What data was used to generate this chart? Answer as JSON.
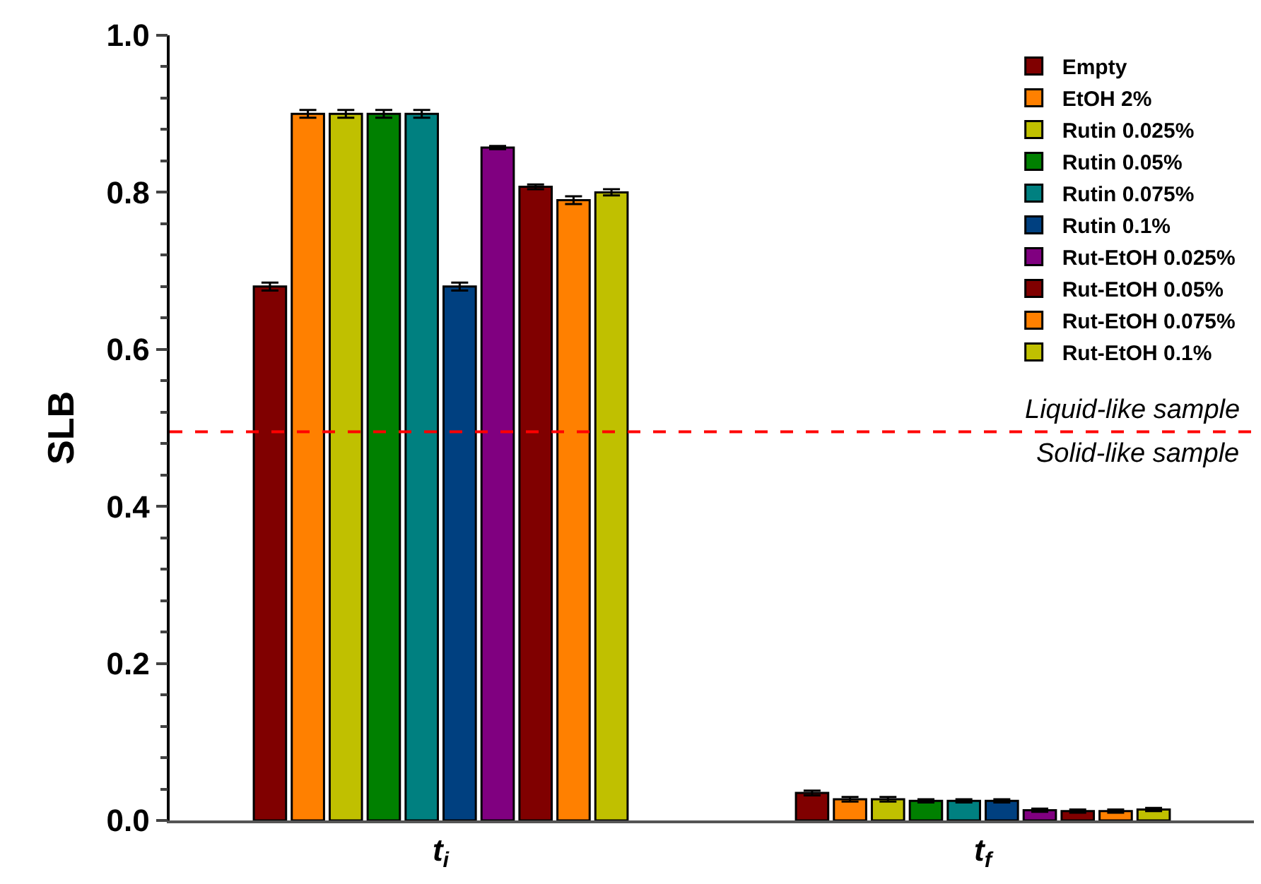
{
  "chart_data": {
    "type": "bar",
    "ylabel": "SLB",
    "categories": [
      "t$_{i}$",
      "t$_{f}$"
    ],
    "series": [
      {
        "name": "Empty",
        "color": "#800000",
        "values": [
          0.68,
          0.035
        ],
        "errors": [
          0.005,
          0.003
        ]
      },
      {
        "name": "EtOH 2%",
        "color": "#ff8000",
        "values": [
          0.9,
          0.027
        ],
        "errors": [
          0.005,
          0.003
        ]
      },
      {
        "name": "Rutin 0.025%",
        "color": "#c0c000",
        "values": [
          0.9,
          0.027
        ],
        "errors": [
          0.005,
          0.003
        ]
      },
      {
        "name": "Rutin 0.05%",
        "color": "#008000",
        "values": [
          0.9,
          0.025
        ],
        "errors": [
          0.005,
          0.002
        ]
      },
      {
        "name": "Rutin 0.075%",
        "color": "#008080",
        "values": [
          0.9,
          0.025
        ],
        "errors": [
          0.005,
          0.002
        ]
      },
      {
        "name": "Rutin 0.1%",
        "color": "#004080",
        "values": [
          0.68,
          0.025
        ],
        "errors": [
          0.005,
          0.002
        ]
      },
      {
        "name": "Rut-EtOH 0.025%",
        "color": "#800080",
        "values": [
          0.857,
          0.013
        ],
        "errors": [
          0.002,
          0.002
        ]
      },
      {
        "name": "Rut-EtOH 0.05%",
        "color": "#800000",
        "values": [
          0.807,
          0.012
        ],
        "errors": [
          0.003,
          0.002
        ]
      },
      {
        "name": "Rut-EtOH 0.075%",
        "color": "#ff8000",
        "values": [
          0.79,
          0.012
        ],
        "errors": [
          0.005,
          0.002
        ]
      },
      {
        "name": "Rut-EtOH 0.1%",
        "color": "#c0c000",
        "values": [
          0.8,
          0.014
        ],
        "errors": [
          0.004,
          0.002
        ]
      }
    ],
    "ylim": [
      0,
      1
    ],
    "yticks": [
      {
        "value": 0,
        "label": "0.0"
      },
      0.2,
      0.4,
      0.6,
      0.8,
      {
        "value": 1,
        "label": "1.0"
      }
    ],
    "ref_lines": [
      {
        "axis": "y",
        "value": 0.495,
        "color": "#ff0000",
        "line_style": "dashed"
      }
    ],
    "annotations": [
      {
        "text": "Liquid-like sample",
        "y": 0.495
      },
      {
        "text": "Solid-like sample",
        "y": 0.495
      }
    ],
    "grid": false,
    "legend": "top right"
  }
}
